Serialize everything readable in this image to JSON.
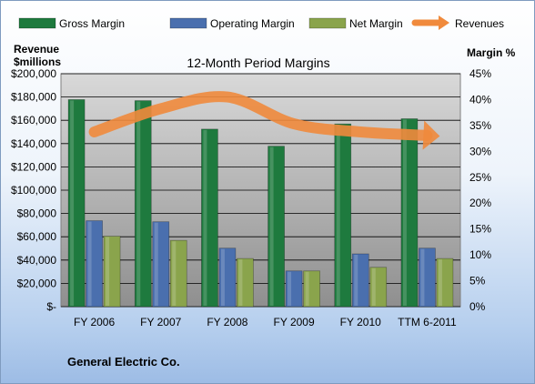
{
  "chart_data": {
    "type": "bar",
    "title": "12-Month Period Margins",
    "categories": [
      "FY 2006",
      "FY 2007",
      "FY 2008",
      "FY 2009",
      "FY 2010",
      "TTM 6-2011"
    ],
    "series": [
      {
        "name": "Gross Margin",
        "color": "#1e7a3e",
        "values": [
          40,
          39.8,
          34.3,
          31,
          35.3,
          36.3
        ]
      },
      {
        "name": "Operating Margin",
        "color": "#4a6fae",
        "values": [
          16.6,
          16.4,
          11.3,
          6.9,
          10.2,
          11.3
        ]
      },
      {
        "name": "Net Margin",
        "color": "#8aa44c",
        "values": [
          13.6,
          12.8,
          9.3,
          6.9,
          7.6,
          9.3
        ]
      }
    ],
    "line_series": {
      "name": "Revenues",
      "color": "#f08a3c",
      "values": [
        150000,
        170000,
        180000,
        157000,
        150000,
        147000
      ]
    },
    "y_left": {
      "label_line1": "Revenue",
      "label_line2": "$millions",
      "min": 0,
      "max": 200000,
      "step": 20000,
      "ticks": [
        "$-",
        "$20,000",
        "$40,000",
        "$60,000",
        "$80,000",
        "$100,000",
        "$120,000",
        "$140,000",
        "$160,000",
        "$180,000",
        "$200,000"
      ]
    },
    "y_right": {
      "label": "Margin %",
      "min": 0,
      "max": 45,
      "step": 5,
      "ticks": [
        "0%",
        "5%",
        "10%",
        "15%",
        "20%",
        "25%",
        "30%",
        "35%",
        "40%",
        "45%"
      ]
    },
    "grid": true,
    "legend_position": "top",
    "plot_background": [
      "#d9d9d9",
      "#8f8f8f"
    ]
  },
  "footer": {
    "company": "General Electric Co."
  }
}
